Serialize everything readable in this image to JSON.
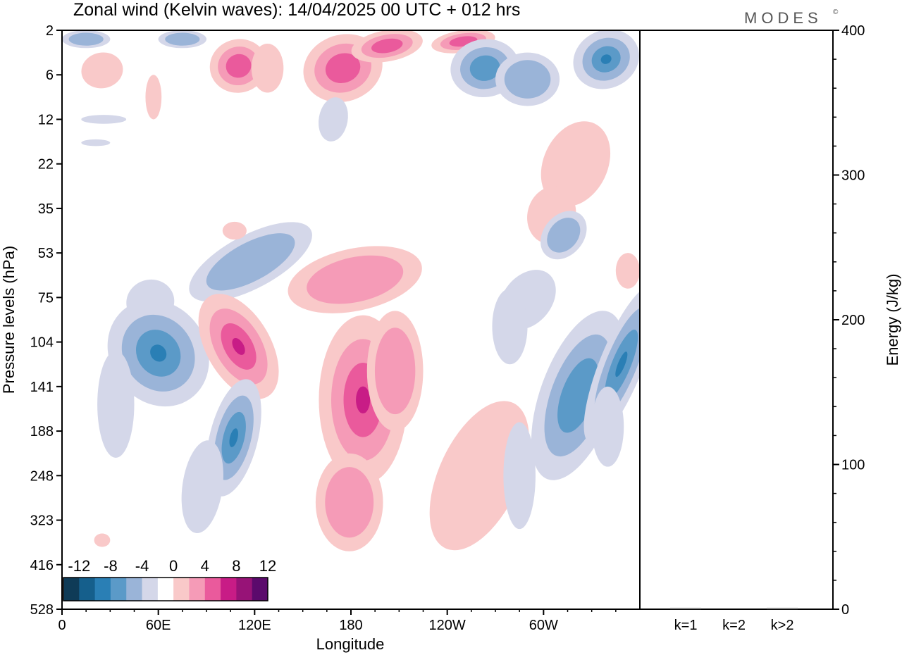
{
  "chart_data": {
    "type": "heatmap",
    "title": "Zonal wind (Kelvin waves):  14/04/2025  00 UTC  + 012 hrs",
    "brand": "MODES",
    "brand_mark": "©",
    "xlabel": "Longitude",
    "ylabel": "Pressure levels (hPa)",
    "x_ticks": [
      "0",
      "60E",
      "120E",
      "180",
      "120W",
      "60W"
    ],
    "x_range": [
      0,
      360
    ],
    "y_ticks": [
      "2",
      "6",
      "12",
      "22",
      "35",
      "53",
      "75",
      "104",
      "141",
      "188",
      "248",
      "323",
      "416",
      "528"
    ],
    "colorbar": {
      "tick_labels": [
        "-12",
        "-8",
        "-4",
        "0",
        "4",
        "8",
        "12"
      ],
      "levels": [
        -14,
        -12,
        -10,
        -8,
        -6,
        -4,
        -2,
        2,
        4,
        6,
        8,
        10,
        12,
        14
      ],
      "colors": [
        "#0f3b57",
        "#155f8c",
        "#2a7fb5",
        "#5b9ac8",
        "#9ab4d8",
        "#d4d7e9",
        "#ffffff",
        "#f9c9c9",
        "#f59bb7",
        "#ea5a9c",
        "#c81c86",
        "#971377",
        "#5b0a6c"
      ]
    },
    "features": [
      {
        "sign": "neg",
        "level": 1,
        "lon": [
          0,
          360
        ],
        "lev": [
          0.0,
          1.4
        ],
        "shape": "band along top"
      },
      {
        "sign": "pos",
        "level": 2,
        "lon": [
          95,
          130
        ],
        "lev": [
          0.3,
          1.0
        ],
        "shape": "upper-level positive anomaly"
      },
      {
        "sign": "pos",
        "level": 2,
        "lon": [
          150,
          230
        ],
        "lev": [
          0.2,
          1.2
        ],
        "shape": "upper-level tilted positive band"
      },
      {
        "sign": "neg",
        "level": 2,
        "lon": [
          240,
          360
        ],
        "lev": [
          0.2,
          1.4
        ],
        "shape": "upper-level negative band"
      },
      {
        "sign": "neg",
        "level": 3,
        "lon": [
          40,
          80
        ],
        "lev": [
          6.5,
          8.5
        ],
        "shape": "tilted negative band"
      },
      {
        "sign": "pos",
        "level": 3,
        "lon": [
          95,
          125
        ],
        "lev": [
          6.2,
          8.0
        ],
        "shape": "tilted positive band"
      },
      {
        "sign": "neg",
        "level": 2,
        "lon": [
          95,
          120
        ],
        "lev": [
          7.8,
          10.5
        ],
        "shape": "tilted negative band"
      },
      {
        "sign": "pos",
        "level": 3,
        "lon": [
          165,
          220
        ],
        "lev": [
          6.5,
          11.5
        ],
        "shape": "deep positive column"
      },
      {
        "sign": "pos",
        "level": 1,
        "lon": [
          230,
          280
        ],
        "lev": [
          8.0,
          11.5
        ],
        "shape": "lower positive band"
      },
      {
        "sign": "neg",
        "level": 2,
        "lon": [
          300,
          360
        ],
        "lev": [
          6.0,
          9.5
        ],
        "shape": "tilted negative band"
      },
      {
        "sign": "pos",
        "level": 1,
        "lon": [
          300,
          360
        ],
        "lev": [
          2.0,
          6.5
        ],
        "shape": "upper-right positive band"
      }
    ],
    "energy_panel": {
      "ylabel": "Energy (J/kg)",
      "y_ticks": [
        "0",
        "100",
        "200",
        "300",
        "400"
      ],
      "ylim": [
        0,
        400
      ],
      "categories": [
        "k=1",
        "k=2",
        "k>2"
      ],
      "values": [
        1,
        0,
        1
      ]
    }
  }
}
